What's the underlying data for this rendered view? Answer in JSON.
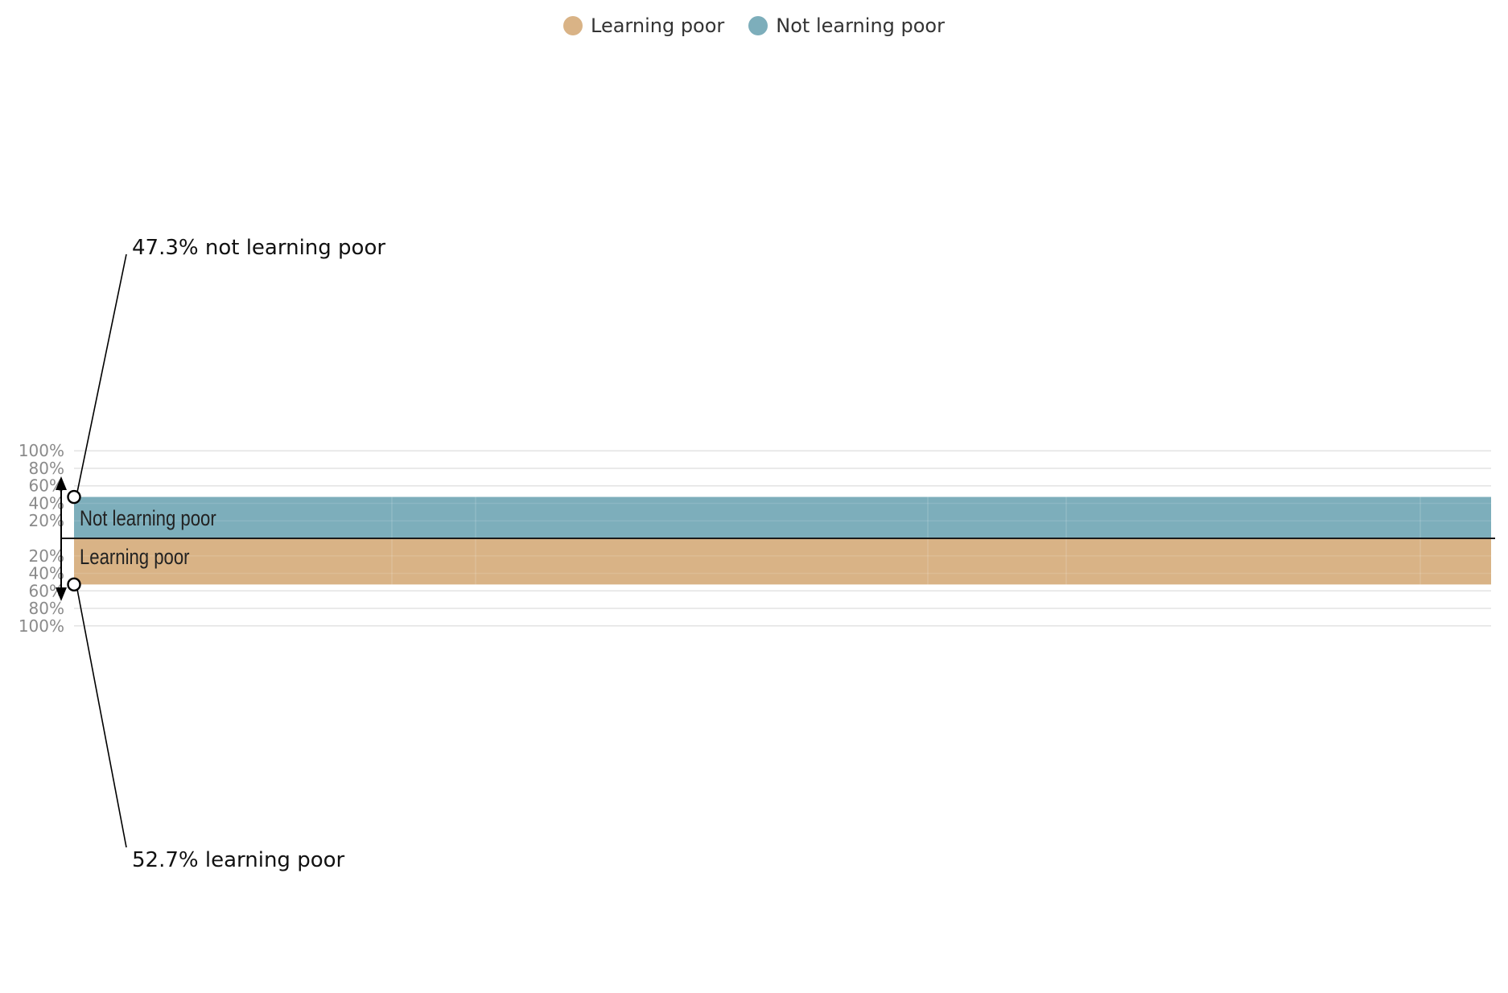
{
  "legend": [
    {
      "label": "Learning poor",
      "color": "#D9B386"
    },
    {
      "label": "Not learning poor",
      "color": "#7DAEBB"
    }
  ],
  "divider_labels": {
    "upper": "Not learning poor",
    "lower": "Learning poor"
  },
  "annotations": {
    "upper": "47.3% not learning poor",
    "lower": "52.7% learning poor"
  },
  "chart_data": {
    "type": "area",
    "ylim_upper": [
      0,
      100
    ],
    "ylim_lower": [
      0,
      100
    ],
    "tick_labels_upper": [
      "20%",
      "40%",
      "60%",
      "80%",
      "100%"
    ],
    "tick_labels_lower": [
      "20%",
      "40%",
      "60%",
      "80%",
      "100%"
    ],
    "series": [
      {
        "name": "Not learning poor",
        "values": [
          47.3
        ],
        "direction": "up",
        "color": "#7DAEBB"
      },
      {
        "name": "Learning poor",
        "values": [
          52.7
        ],
        "direction": "down",
        "color": "#D9B386"
      }
    ],
    "grid": true,
    "legend_position": "top-center"
  }
}
